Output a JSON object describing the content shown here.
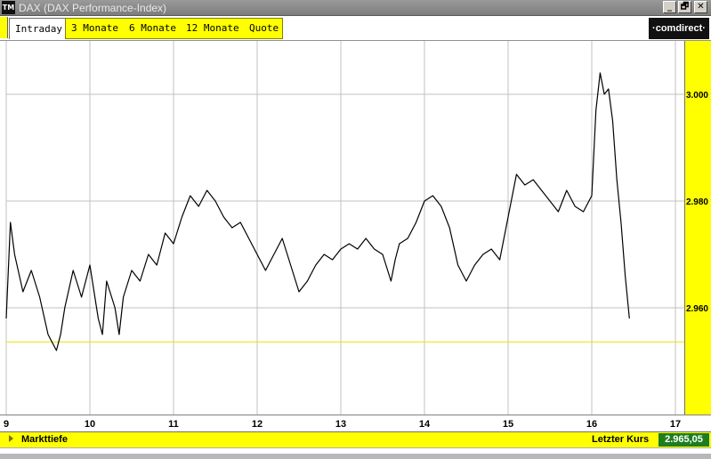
{
  "window": {
    "app_icon_label": "TM",
    "title": "DAX (DAX Performance-Index)",
    "buttons": [
      "_",
      "🗗",
      "✕"
    ]
  },
  "tabs": {
    "active": "Intraday",
    "items": [
      "3 Monate",
      "6 Monate",
      "12 Monate",
      "Quote"
    ]
  },
  "logo": "·comdirect·",
  "status": {
    "left": "Markttiefe",
    "last_label": "Letzter Kurs",
    "last_value": "2.965,05"
  },
  "colors": {
    "accent": "#ffff00",
    "line": "#000000",
    "grid": "#c0c0c0",
    "reference": "#e6e600",
    "value_bg": "#1e7e1e"
  },
  "chart_data": {
    "type": "line",
    "x_ticks": [
      "9",
      "10",
      "11",
      "12",
      "13",
      "14",
      "15",
      "16",
      "17"
    ],
    "xlim": [
      9,
      17
    ],
    "ylim": [
      2940,
      3010
    ],
    "y_ticks": [
      2960,
      2980,
      3000
    ],
    "y_tick_labels": [
      "2.960",
      "2.980",
      "3.000"
    ],
    "reference_line": 2953.6,
    "grid": true,
    "series": [
      {
        "x": [
          9.0,
          9.05,
          9.1,
          9.2,
          9.3,
          9.4,
          9.5,
          9.6,
          9.65,
          9.7,
          9.8,
          9.9,
          10.0,
          10.1,
          10.15,
          10.2,
          10.3,
          10.35,
          10.4,
          10.5,
          10.6,
          10.7,
          10.8,
          10.9,
          11.0,
          11.1,
          11.2,
          11.3,
          11.4,
          11.5,
          11.6,
          11.7,
          11.8,
          11.9,
          12.0,
          12.1,
          12.2,
          12.3,
          12.4,
          12.5,
          12.6,
          12.7,
          12.8,
          12.9,
          13.0,
          13.1,
          13.2,
          13.3,
          13.4,
          13.5,
          13.6,
          13.65,
          13.7,
          13.8,
          13.9,
          14.0,
          14.1,
          14.2,
          14.3,
          14.4,
          14.5,
          14.6,
          14.7,
          14.8,
          14.9,
          15.0,
          15.1,
          15.2,
          15.3,
          15.4,
          15.5,
          15.6,
          15.7,
          15.8,
          15.9,
          16.0,
          16.05,
          16.1,
          16.15,
          16.2,
          16.25,
          16.3,
          16.35,
          16.4,
          16.45
        ],
        "y": [
          2958,
          2976,
          2970,
          2963,
          2967,
          2962,
          2955,
          2952,
          2955,
          2960,
          2967,
          2962,
          2968,
          2958,
          2955,
          2965,
          2960,
          2955,
          2962,
          2967,
          2965,
          2970,
          2968,
          2974,
          2972,
          2977,
          2981,
          2979,
          2982,
          2980,
          2977,
          2975,
          2976,
          2973,
          2970,
          2967,
          2970,
          2973,
          2968,
          2963,
          2965,
          2968,
          2970,
          2969,
          2971,
          2972,
          2971,
          2973,
          2971,
          2970,
          2965,
          2969,
          2972,
          2973,
          2976,
          2980,
          2981,
          2979,
          2975,
          2968,
          2965,
          2968,
          2970,
          2971,
          2969,
          2977,
          2985,
          2983,
          2984,
          2982,
          2980,
          2978,
          2982,
          2979,
          2978,
          2981,
          2997,
          3004,
          3000,
          3001,
          2995,
          2984,
          2976,
          2966,
          2958
        ]
      }
    ]
  }
}
